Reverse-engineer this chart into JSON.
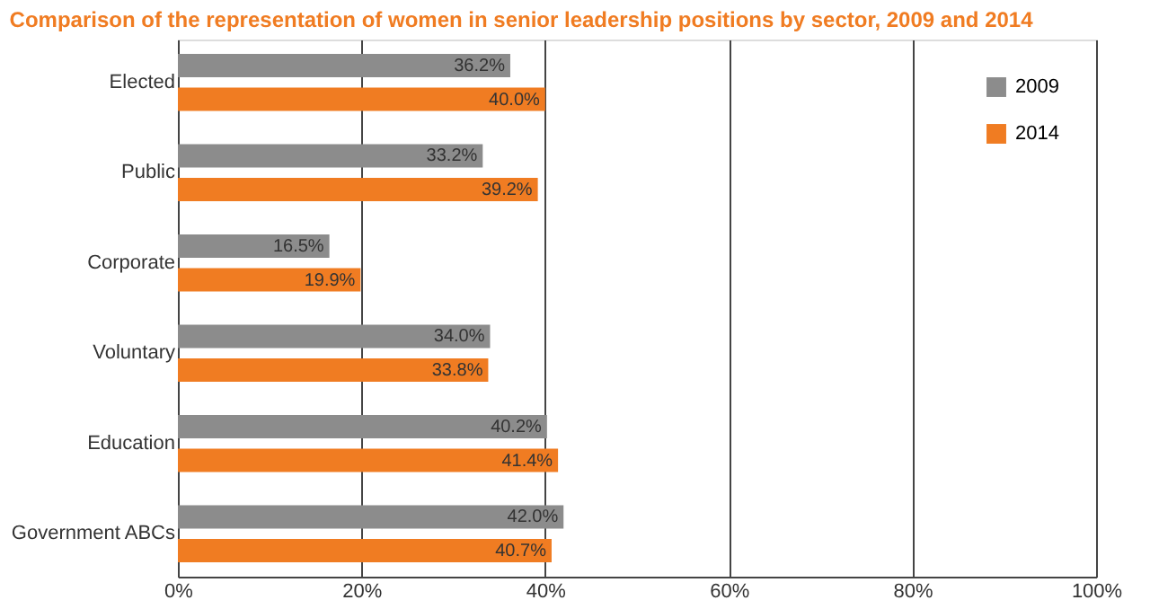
{
  "chart_data": {
    "type": "bar",
    "orientation": "horizontal",
    "title": "Comparison of the representation of women in senior leadership positions by sector, 2009 and 2014",
    "categories": [
      "Elected",
      "Public",
      "Corporate",
      "Voluntary",
      "Education",
      "Government ABCs"
    ],
    "series": [
      {
        "name": "2009",
        "color": "#8c8c8c",
        "values": [
          36.2,
          33.2,
          16.5,
          34.0,
          40.2,
          42.0
        ],
        "value_labels": [
          "36.2%",
          "33.2%",
          "16.5%",
          "34.0%",
          "40.2%",
          "42.0%"
        ]
      },
      {
        "name": "2014",
        "color": "#f07c22",
        "values": [
          40.0,
          39.2,
          19.9,
          33.8,
          41.4,
          40.7
        ],
        "value_labels": [
          "40.0%",
          "39.2%",
          "19.9%",
          "33.8%",
          "41.4%",
          "40.7%"
        ]
      }
    ],
    "xlim": [
      0,
      100
    ],
    "xticks": [
      {
        "value": 0,
        "label": "0%"
      },
      {
        "value": 20,
        "label": "20%"
      },
      {
        "value": 40,
        "label": "40%"
      },
      {
        "value": 60,
        "label": "60%"
      },
      {
        "value": 80,
        "label": "80%"
      },
      {
        "value": 100,
        "label": "100%"
      }
    ],
    "grid": "x",
    "legend": "top right"
  }
}
